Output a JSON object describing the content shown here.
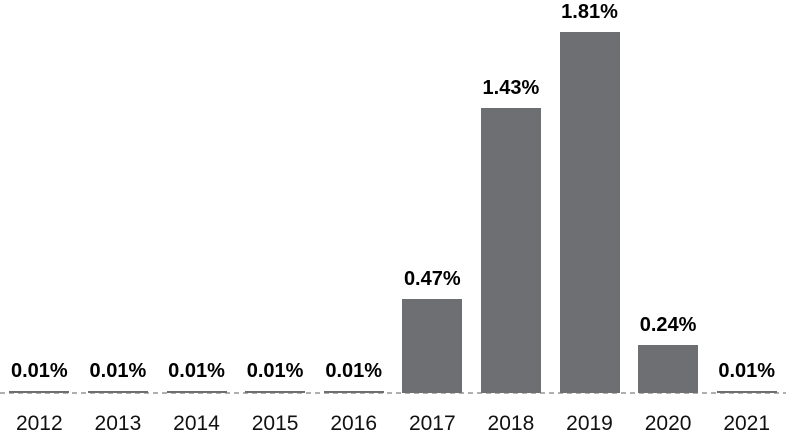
{
  "chart_data": {
    "type": "bar",
    "title": "",
    "xlabel": "",
    "ylabel": "",
    "categories": [
      "2012",
      "2013",
      "2014",
      "2015",
      "2016",
      "2017",
      "2018",
      "2019",
      "2020",
      "2021"
    ],
    "values": [
      0.01,
      0.01,
      0.01,
      0.01,
      0.01,
      0.47,
      1.43,
      1.81,
      0.24,
      0.01
    ],
    "value_labels": [
      "0.01%",
      "0.01%",
      "0.01%",
      "0.01%",
      "0.01%",
      "0.47%",
      "1.43%",
      "1.81%",
      "0.24%",
      "0.01%"
    ],
    "unit": "%",
    "ylim": [
      0,
      2.0
    ],
    "grid": false,
    "legend": false,
    "baseline_style": "dashed",
    "colors": {
      "bar": "#6d6f72",
      "value_label_text": "#000000",
      "axis_tick_text": "#111111",
      "baseline_dash": "#b0b0b0",
      "background": "#ffffff"
    }
  }
}
